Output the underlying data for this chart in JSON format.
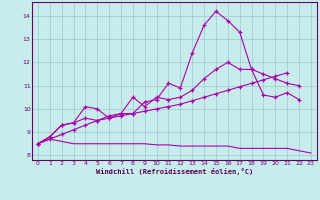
{
  "xlabel": "Windchill (Refroidissement éolien,°C)",
  "background_color": "#c8ecec",
  "line_color": "#aa00aa",
  "grid_color": "#99cccc",
  "xlim": [
    -0.5,
    23.5
  ],
  "ylim": [
    7.8,
    14.6
  ],
  "yticks": [
    8,
    9,
    10,
    11,
    12,
    13,
    14
  ],
  "xticks": [
    0,
    1,
    2,
    3,
    4,
    5,
    6,
    7,
    8,
    9,
    10,
    11,
    12,
    13,
    14,
    15,
    16,
    17,
    18,
    19,
    20,
    21,
    22,
    23
  ],
  "series": [
    {
      "x": [
        0,
        1,
        2,
        3,
        4,
        5,
        6,
        7,
        8,
        9,
        10,
        11,
        12,
        13,
        14,
        15,
        16,
        17,
        18,
        19,
        20,
        21,
        22
      ],
      "y": [
        8.5,
        8.8,
        9.3,
        9.4,
        9.6,
        9.5,
        9.7,
        9.8,
        9.8,
        10.3,
        10.4,
        11.1,
        10.9,
        12.4,
        13.6,
        14.2,
        13.8,
        13.3,
        11.7,
        10.6,
        10.5,
        10.7,
        10.4
      ],
      "marker": true,
      "lw": 0.8
    },
    {
      "x": [
        0,
        1,
        2,
        3,
        4,
        5,
        6,
        7,
        8,
        9,
        10,
        11,
        12,
        13,
        14,
        15,
        16,
        17,
        18,
        19,
        20,
        21,
        22,
        23
      ],
      "y": [
        8.5,
        8.8,
        9.3,
        9.4,
        10.1,
        10.0,
        9.6,
        9.8,
        10.5,
        10.1,
        10.5,
        10.4,
        10.5,
        10.8,
        11.3,
        11.7,
        12.0,
        11.7,
        11.7,
        11.5,
        11.3,
        11.1,
        11.0,
        null
      ],
      "marker": true,
      "lw": 0.8
    },
    {
      "x": [
        0,
        1,
        2,
        3,
        4,
        5,
        6,
        7,
        8,
        9,
        10,
        11,
        12,
        13,
        14,
        15,
        16,
        17,
        18,
        19,
        20,
        21,
        22,
        23
      ],
      "y": [
        8.5,
        8.7,
        8.9,
        9.1,
        9.3,
        9.5,
        9.6,
        9.7,
        9.8,
        9.9,
        10.0,
        10.1,
        10.2,
        10.35,
        10.5,
        10.65,
        10.8,
        10.95,
        11.1,
        11.25,
        11.4,
        11.55,
        null,
        null
      ],
      "marker": true,
      "lw": 0.8
    },
    {
      "x": [
        0,
        1,
        2,
        3,
        4,
        5,
        6,
        7,
        8,
        9,
        10,
        11,
        12,
        13,
        14,
        15,
        16,
        17,
        18,
        19,
        20,
        21,
        22,
        23
      ],
      "y": [
        8.5,
        8.7,
        8.6,
        8.5,
        8.5,
        8.5,
        8.5,
        8.5,
        8.5,
        8.5,
        8.45,
        8.45,
        8.4,
        8.4,
        8.4,
        8.4,
        8.4,
        8.3,
        8.3,
        8.3,
        8.3,
        8.3,
        8.2,
        8.1
      ],
      "marker": false,
      "lw": 0.8
    }
  ]
}
